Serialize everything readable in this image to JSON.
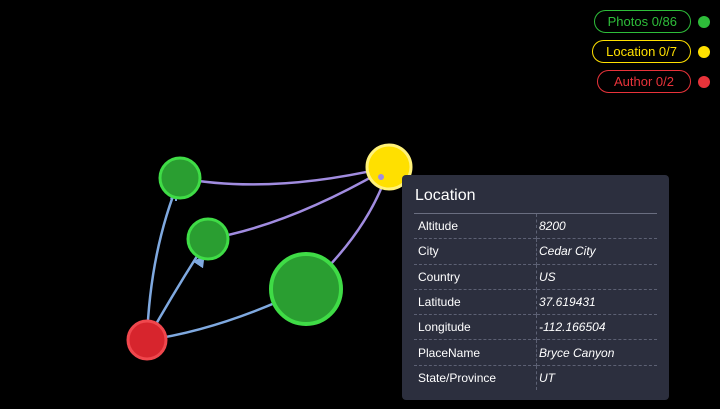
{
  "legend": [
    {
      "label": "Photos 0/86",
      "color": "#2ebd3a"
    },
    {
      "label": "Location 0/7",
      "color": "#ffe000"
    },
    {
      "label": "Author 0/2",
      "color": "#e8333a"
    }
  ],
  "graph": {
    "nodes": [
      {
        "name": "photo-node",
        "type": "photo"
      },
      {
        "name": "photo-node",
        "type": "photo"
      },
      {
        "name": "photo-node",
        "type": "photo"
      },
      {
        "name": "location-node",
        "type": "location"
      },
      {
        "name": "author-node",
        "type": "author"
      }
    ],
    "colors": {
      "photo_fill": "#2a9e31",
      "photo_stroke": "#3fdc46",
      "location_fill": "#ffe000",
      "location_stroke": "#fff27a",
      "author_fill": "#d7252d",
      "author_stroke": "#f0474d",
      "edge_author": "#7fa9e0",
      "edge_location": "#a18ce0"
    }
  },
  "tooltip": {
    "title": "Location",
    "rows": [
      {
        "key": "Altitude",
        "value": "8200"
      },
      {
        "key": "City",
        "value": "Cedar City"
      },
      {
        "key": "Country",
        "value": "US"
      },
      {
        "key": "Latitude",
        "value": "37.619431"
      },
      {
        "key": "Longitude",
        "value": "-112.166504"
      },
      {
        "key": "PlaceName",
        "value": "Bryce Canyon"
      },
      {
        "key": "State/Province",
        "value": "UT"
      }
    ]
  }
}
